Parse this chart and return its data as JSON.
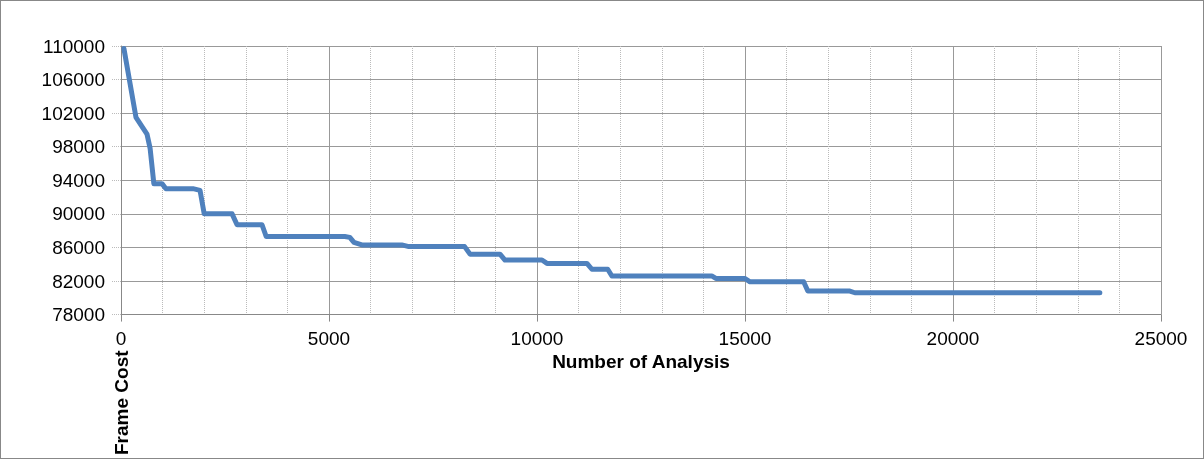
{
  "chart_data": {
    "type": "line",
    "xlabel": "Number of Analysis",
    "ylabel": "Frame Cost",
    "x": [
      70,
      360,
      625,
      700,
      790,
      985,
      1080,
      1730,
      1900,
      2000,
      2670,
      2790,
      3390,
      3490,
      5380,
      5500,
      5600,
      5790,
      6750,
      6920,
      8260,
      8390,
      9110,
      9230,
      10120,
      10240,
      11200,
      11320,
      11700,
      11800,
      14200,
      14300,
      15000,
      15120,
      16410,
      16510,
      17520,
      17640,
      23530
    ],
    "series": [
      {
        "color": "#4f81bd",
        "values": [
          109700,
          101500,
          99500,
          97800,
          93600,
          93600,
          93000,
          93000,
          92800,
          90000,
          90000,
          88700,
          88700,
          87300,
          87300,
          87200,
          86600,
          86300,
          86300,
          86100,
          86100,
          85200,
          85200,
          84500,
          84500,
          84100,
          84100,
          83400,
          83400,
          82600,
          82600,
          82300,
          82300,
          81900,
          81900,
          80800,
          80800,
          80600,
          80600
        ]
      }
    ],
    "xlim": [
      0,
      25000
    ],
    "xticks": [
      0,
      5000,
      10000,
      15000,
      20000,
      25000
    ],
    "ylim": [
      78000,
      110000
    ],
    "yticks": [
      78000,
      82000,
      86000,
      90000,
      94000,
      98000,
      102000,
      106000,
      110000
    ],
    "grid": true,
    "marker": "none",
    "line_style": "solid"
  }
}
